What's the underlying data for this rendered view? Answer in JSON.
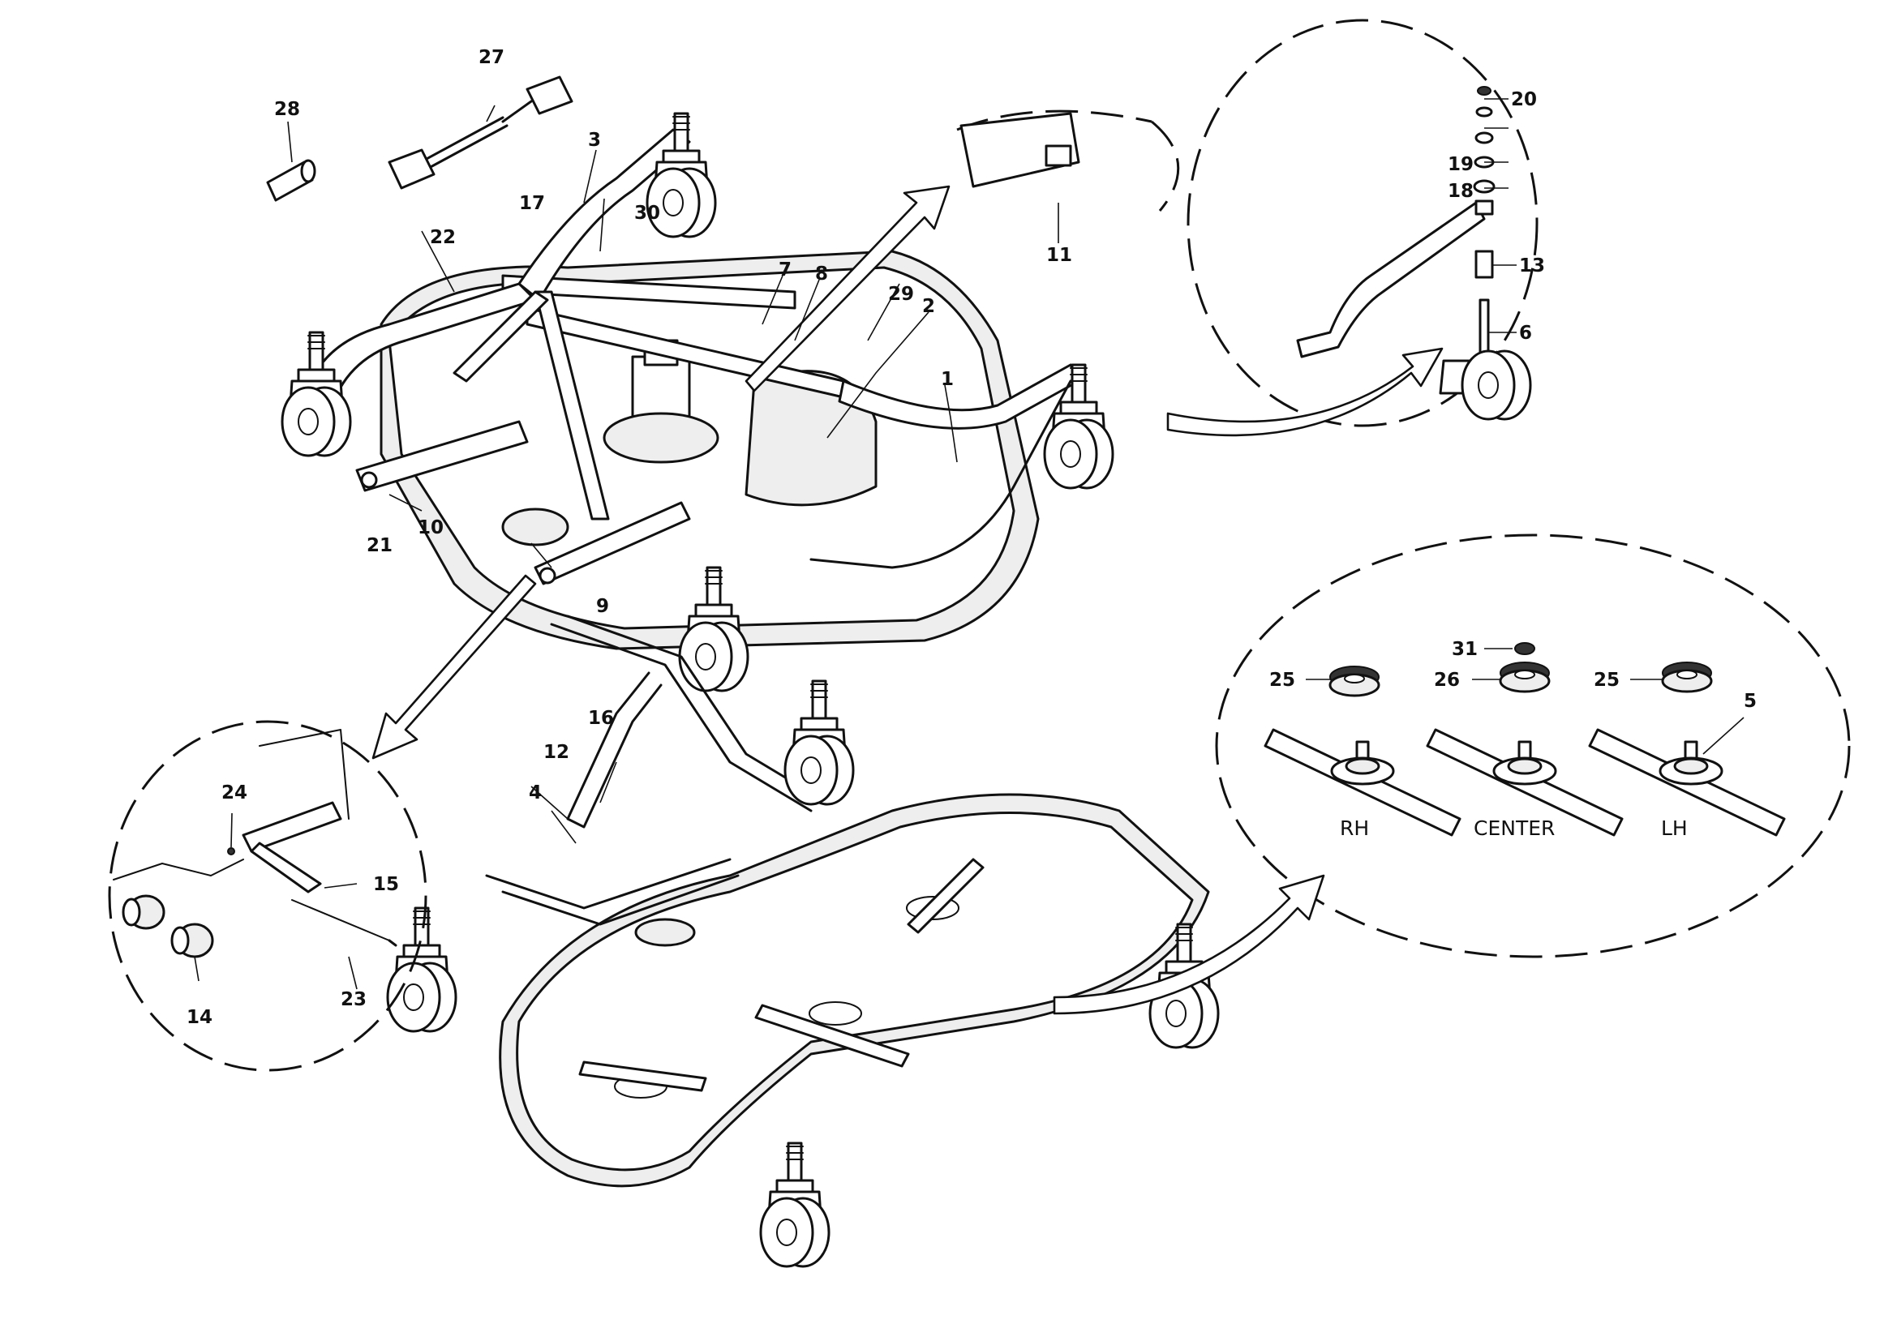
{
  "diagram": {
    "callouts": [
      "1",
      "2",
      "3",
      "4",
      "5",
      "6",
      "7",
      "8",
      "9",
      "10",
      "11",
      "12",
      "13",
      "14",
      "15",
      "16",
      "17",
      "18",
      "19",
      "20",
      "21",
      "22",
      "23",
      "24",
      "25",
      "25",
      "26",
      "27",
      "28",
      "29",
      "30",
      "31"
    ],
    "blade_labels": {
      "rh": "RH",
      "center": "CENTER",
      "lh": "LH"
    }
  }
}
